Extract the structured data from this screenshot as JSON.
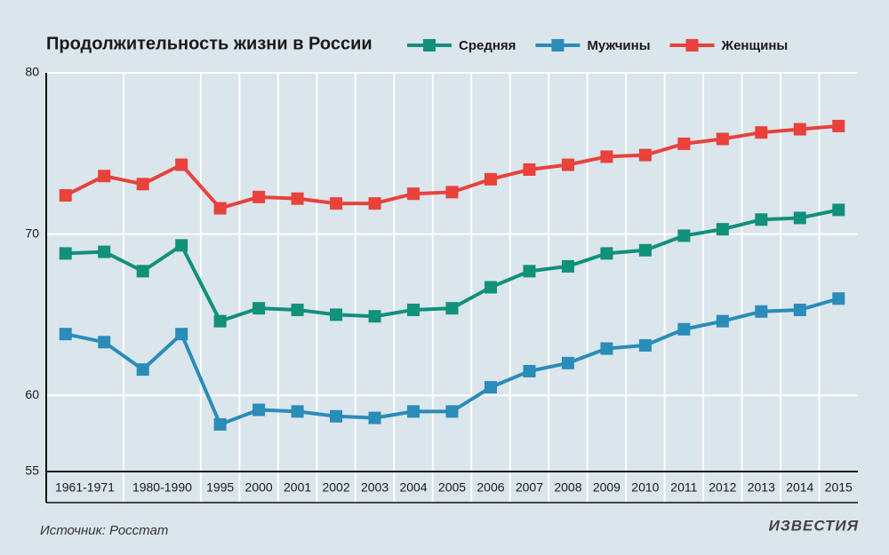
{
  "chart_data": {
    "type": "line",
    "title": "Продолжительность жизни в России",
    "categories": [
      "1961-1971",
      null,
      "1980-1990",
      null,
      "1995",
      "2000",
      "2001",
      "2002",
      "2003",
      "2004",
      "2005",
      "2006",
      "2007",
      "2008",
      "2009",
      "2010",
      "2011",
      "2012",
      "2013",
      "2014",
      "2015"
    ],
    "series": [
      {
        "name": "Средняя",
        "color": "#11907a",
        "values": [
          68.8,
          68.9,
          67.7,
          69.3,
          64.6,
          65.4,
          65.3,
          65.0,
          64.9,
          65.3,
          65.4,
          66.7,
          67.7,
          68.0,
          68.8,
          69.0,
          69.9,
          70.3,
          70.9,
          71.0,
          71.5
        ]
      },
      {
        "name": "Мужчины",
        "color": "#2a8cb8",
        "values": [
          63.8,
          63.3,
          61.6,
          63.8,
          58.2,
          59.1,
          59.0,
          58.7,
          58.6,
          59.0,
          59.0,
          60.5,
          61.5,
          62.0,
          62.9,
          63.1,
          64.1,
          64.6,
          65.2,
          65.3,
          66.0
        ]
      },
      {
        "name": "Женщины",
        "color": "#e8423b",
        "values": [
          72.4,
          73.6,
          73.1,
          74.3,
          71.6,
          72.3,
          72.2,
          71.9,
          71.9,
          72.5,
          72.6,
          73.4,
          74.0,
          74.3,
          74.8,
          74.9,
          75.6,
          75.9,
          76.3,
          76.5,
          76.7
        ]
      }
    ],
    "ylim": [
      55,
      80
    ],
    "yticks": [
      55,
      60,
      70,
      80
    ],
    "grid": true,
    "source": "Источник: Росстат",
    "logo": "ИЗВЕСТИЯ"
  }
}
